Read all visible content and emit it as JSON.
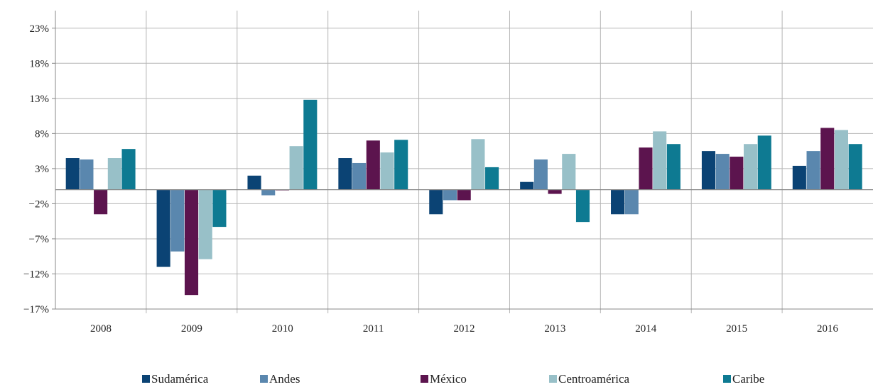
{
  "chart_data": {
    "type": "bar",
    "categories": [
      "2008",
      "2009",
      "2010",
      "2011",
      "2012",
      "2013",
      "2014",
      "2015",
      "2016"
    ],
    "series": [
      {
        "name": "Sudamérica",
        "color": "#0B4374",
        "values": [
          4.5,
          -11.0,
          2.0,
          4.5,
          -3.5,
          1.1,
          -3.5,
          5.5,
          3.4
        ]
      },
      {
        "name": "Andes",
        "color": "#5A87AE",
        "values": [
          4.3,
          -8.8,
          -0.8,
          3.8,
          -1.5,
          4.3,
          -3.5,
          5.1,
          5.5
        ]
      },
      {
        "name": "México",
        "color": "#5C144E",
        "values": [
          -3.5,
          -15.0,
          -0.1,
          7.0,
          -1.5,
          -0.6,
          6.0,
          4.7,
          8.8
        ]
      },
      {
        "name": "Centroamérica",
        "color": "#98C0C8",
        "values": [
          4.5,
          -9.9,
          6.2,
          5.3,
          7.2,
          5.1,
          8.3,
          6.5,
          8.5
        ]
      },
      {
        "name": "Caribe",
        "color": "#0E7A92",
        "values": [
          5.8,
          -5.3,
          12.8,
          7.1,
          3.2,
          -4.6,
          6.5,
          7.7,
          6.5
        ]
      }
    ],
    "yticks": [
      23,
      18,
      13,
      8,
      3,
      -2,
      -7,
      -12,
      -17
    ],
    "ytick_labels": [
      "23%",
      "18%",
      "13%",
      "8%",
      "3%",
      "−2%",
      "−7%",
      "−12%",
      "−17%"
    ],
    "ylim": [
      -17,
      25.5
    ],
    "title": "",
    "xlabel": "",
    "ylabel": "",
    "grid": true,
    "legend_position": "bottom"
  }
}
